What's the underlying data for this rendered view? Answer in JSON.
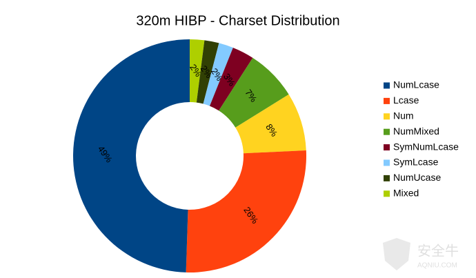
{
  "chart_data": {
    "type": "donut",
    "title": "320m HIBP - Charset Distribution",
    "categories": [
      "NumLcase",
      "Lcase",
      "Num",
      "NumMixed",
      "SymNumLcase",
      "SymLcase",
      "NumUcase",
      "Mixed"
    ],
    "values": [
      49,
      26,
      8,
      7,
      3,
      2,
      2,
      2
    ],
    "value_labels": [
      "49%",
      "26%",
      "8%",
      "7%",
      "3%",
      "2%",
      "2%",
      "2%"
    ],
    "colors": [
      "#004586",
      "#ff420e",
      "#ffd320",
      "#579d1c",
      "#7e0021",
      "#83caff",
      "#314004",
      "#aecf00"
    ],
    "legend": "right"
  },
  "watermark": {
    "text": "安全牛",
    "subtext": "AQNIU.COM"
  }
}
